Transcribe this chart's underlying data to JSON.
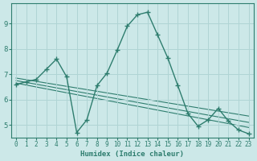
{
  "xlabel": "Humidex (Indice chaleur)",
  "bg_color": "#cce8e8",
  "grid_color": "#b0d4d4",
  "line_color": "#2e7d6e",
  "xlim": [
    -0.5,
    23.5
  ],
  "ylim": [
    4.5,
    9.8
  ],
  "yticks": [
    5,
    6,
    7,
    8,
    9
  ],
  "xticks": [
    0,
    1,
    2,
    3,
    4,
    5,
    6,
    7,
    8,
    9,
    10,
    11,
    12,
    13,
    14,
    15,
    16,
    17,
    18,
    19,
    20,
    21,
    22,
    23
  ],
  "main_curve": {
    "x": [
      0,
      1,
      2,
      3,
      4,
      5,
      6,
      7,
      8,
      9,
      10,
      11,
      12,
      13,
      14,
      15,
      16,
      17,
      18,
      19,
      20,
      21,
      22,
      23
    ],
    "y": [
      6.6,
      6.7,
      6.8,
      7.2,
      7.6,
      6.9,
      4.7,
      5.2,
      6.55,
      7.05,
      7.95,
      8.9,
      9.35,
      9.45,
      8.55,
      7.65,
      6.55,
      5.45,
      4.95,
      5.2,
      5.65,
      5.15,
      4.8,
      4.65
    ]
  },
  "reg_lines": [
    {
      "x": [
        0,
        23
      ],
      "y": [
        6.85,
        5.35
      ]
    },
    {
      "x": [
        0,
        23
      ],
      "y": [
        6.75,
        5.1
      ]
    },
    {
      "x": [
        0,
        23
      ],
      "y": [
        6.65,
        4.9
      ]
    }
  ]
}
